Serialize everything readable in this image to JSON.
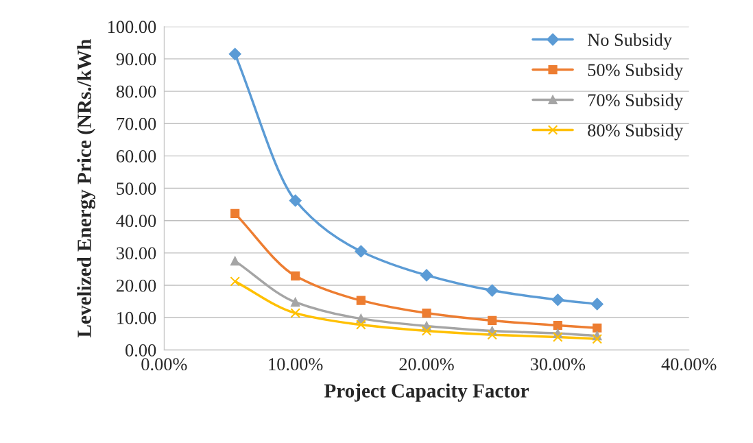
{
  "chart_data": {
    "type": "line",
    "xlabel": "Project Capacity Factor",
    "ylabel": "Levelized Energy Price (NRs./kWh",
    "x": [
      5.4,
      10,
      15,
      20,
      25,
      30,
      33
    ],
    "series": [
      {
        "name": "No Subsidy",
        "color": "#5b9bd5",
        "marker": "diamond",
        "values": [
          91.5,
          46.2,
          30.5,
          23.1,
          18.4,
          15.5,
          14.2
        ]
      },
      {
        "name": "50% Subsidy",
        "color": "#ed7d31",
        "marker": "square",
        "values": [
          42.2,
          22.9,
          15.3,
          11.4,
          9.1,
          7.6,
          6.8
        ]
      },
      {
        "name": "70% Subsidy",
        "color": "#a5a5a5",
        "marker": "triangle",
        "values": [
          27.5,
          14.8,
          9.7,
          7.4,
          5.9,
          5.1,
          4.4
        ]
      },
      {
        "name": "80% Subsidy",
        "color": "#ffc000",
        "marker": "cross",
        "values": [
          21.2,
          11.4,
          7.8,
          5.9,
          4.7,
          4.0,
          3.4
        ]
      }
    ],
    "xlim": [
      0,
      40
    ],
    "xticks": [
      {
        "value": 0,
        "label": "0.00%"
      },
      {
        "value": 10,
        "label": "10.00%"
      },
      {
        "value": 20,
        "label": "20.00%"
      },
      {
        "value": 30,
        "label": "30.00%"
      },
      {
        "value": 40,
        "label": "40.00%"
      }
    ],
    "ylim": [
      0,
      100
    ],
    "yticks": [
      {
        "value": 0,
        "label": "0.00"
      },
      {
        "value": 10,
        "label": "10.00"
      },
      {
        "value": 20,
        "label": "20.00"
      },
      {
        "value": 30,
        "label": "30.00"
      },
      {
        "value": 40,
        "label": "40.00"
      },
      {
        "value": 50,
        "label": "50.00"
      },
      {
        "value": 60,
        "label": "60.00"
      },
      {
        "value": 70,
        "label": "70.00"
      },
      {
        "value": 80,
        "label": "80.00"
      },
      {
        "value": 90,
        "label": "90.00"
      },
      {
        "value": 100,
        "label": "100.00"
      }
    ],
    "grid": "y",
    "legend": "top right",
    "line_style": "solid"
  }
}
